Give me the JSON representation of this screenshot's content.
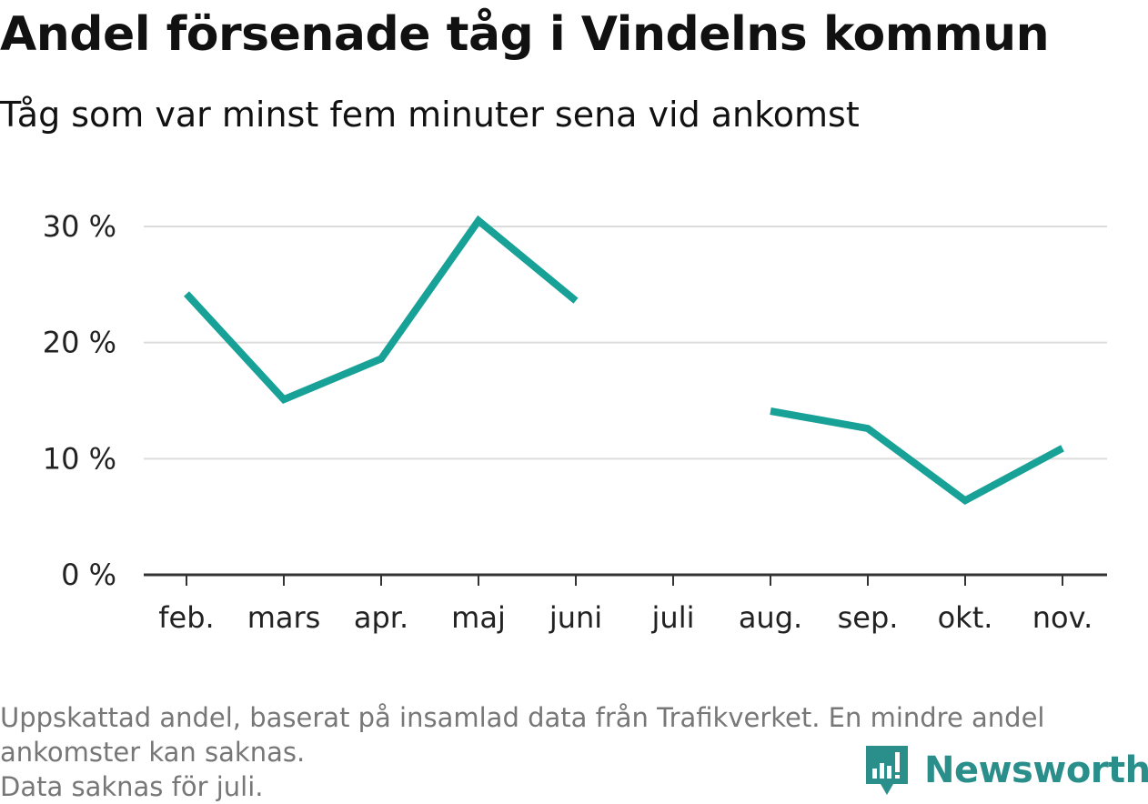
{
  "header": {
    "title": "Andel försenade tåg i Vindelns kommun",
    "subtitle": "Tåg som var minst fem minuter sena vid ankomst"
  },
  "footnote": {
    "line1": "Uppskattad andel, baserat på insamlad data från Trafikverket. En mindre andel",
    "line2": "ankomster kan saknas.",
    "line3": "Data saknas för juli."
  },
  "brand": {
    "name": "Newsworthy",
    "icon": "newsworthy-logo-icon",
    "color": "#2a8f8a"
  },
  "chart_data": {
    "type": "line",
    "title": "Andel försenade tåg i Vindelns kommun",
    "subtitle": "Tåg som var minst fem minuter sena vid ankomst",
    "xlabel": "",
    "ylabel": "",
    "categories": [
      "feb.",
      "mars",
      "apr.",
      "maj",
      "juni",
      "juli",
      "aug.",
      "sep.",
      "okt.",
      "nov."
    ],
    "series": [
      {
        "values": [
          24.2,
          15.1,
          18.6,
          30.5,
          23.6,
          null,
          14.1,
          12.6,
          6.4,
          10.9
        ],
        "color": "#17a197"
      }
    ],
    "yticks": [
      0,
      10,
      20,
      30
    ],
    "ytick_labels": [
      "0 %",
      "10 %",
      "20 %",
      "30 %"
    ],
    "ylim": [
      0,
      30.5
    ],
    "grid": "horizontal",
    "legend": "none"
  }
}
